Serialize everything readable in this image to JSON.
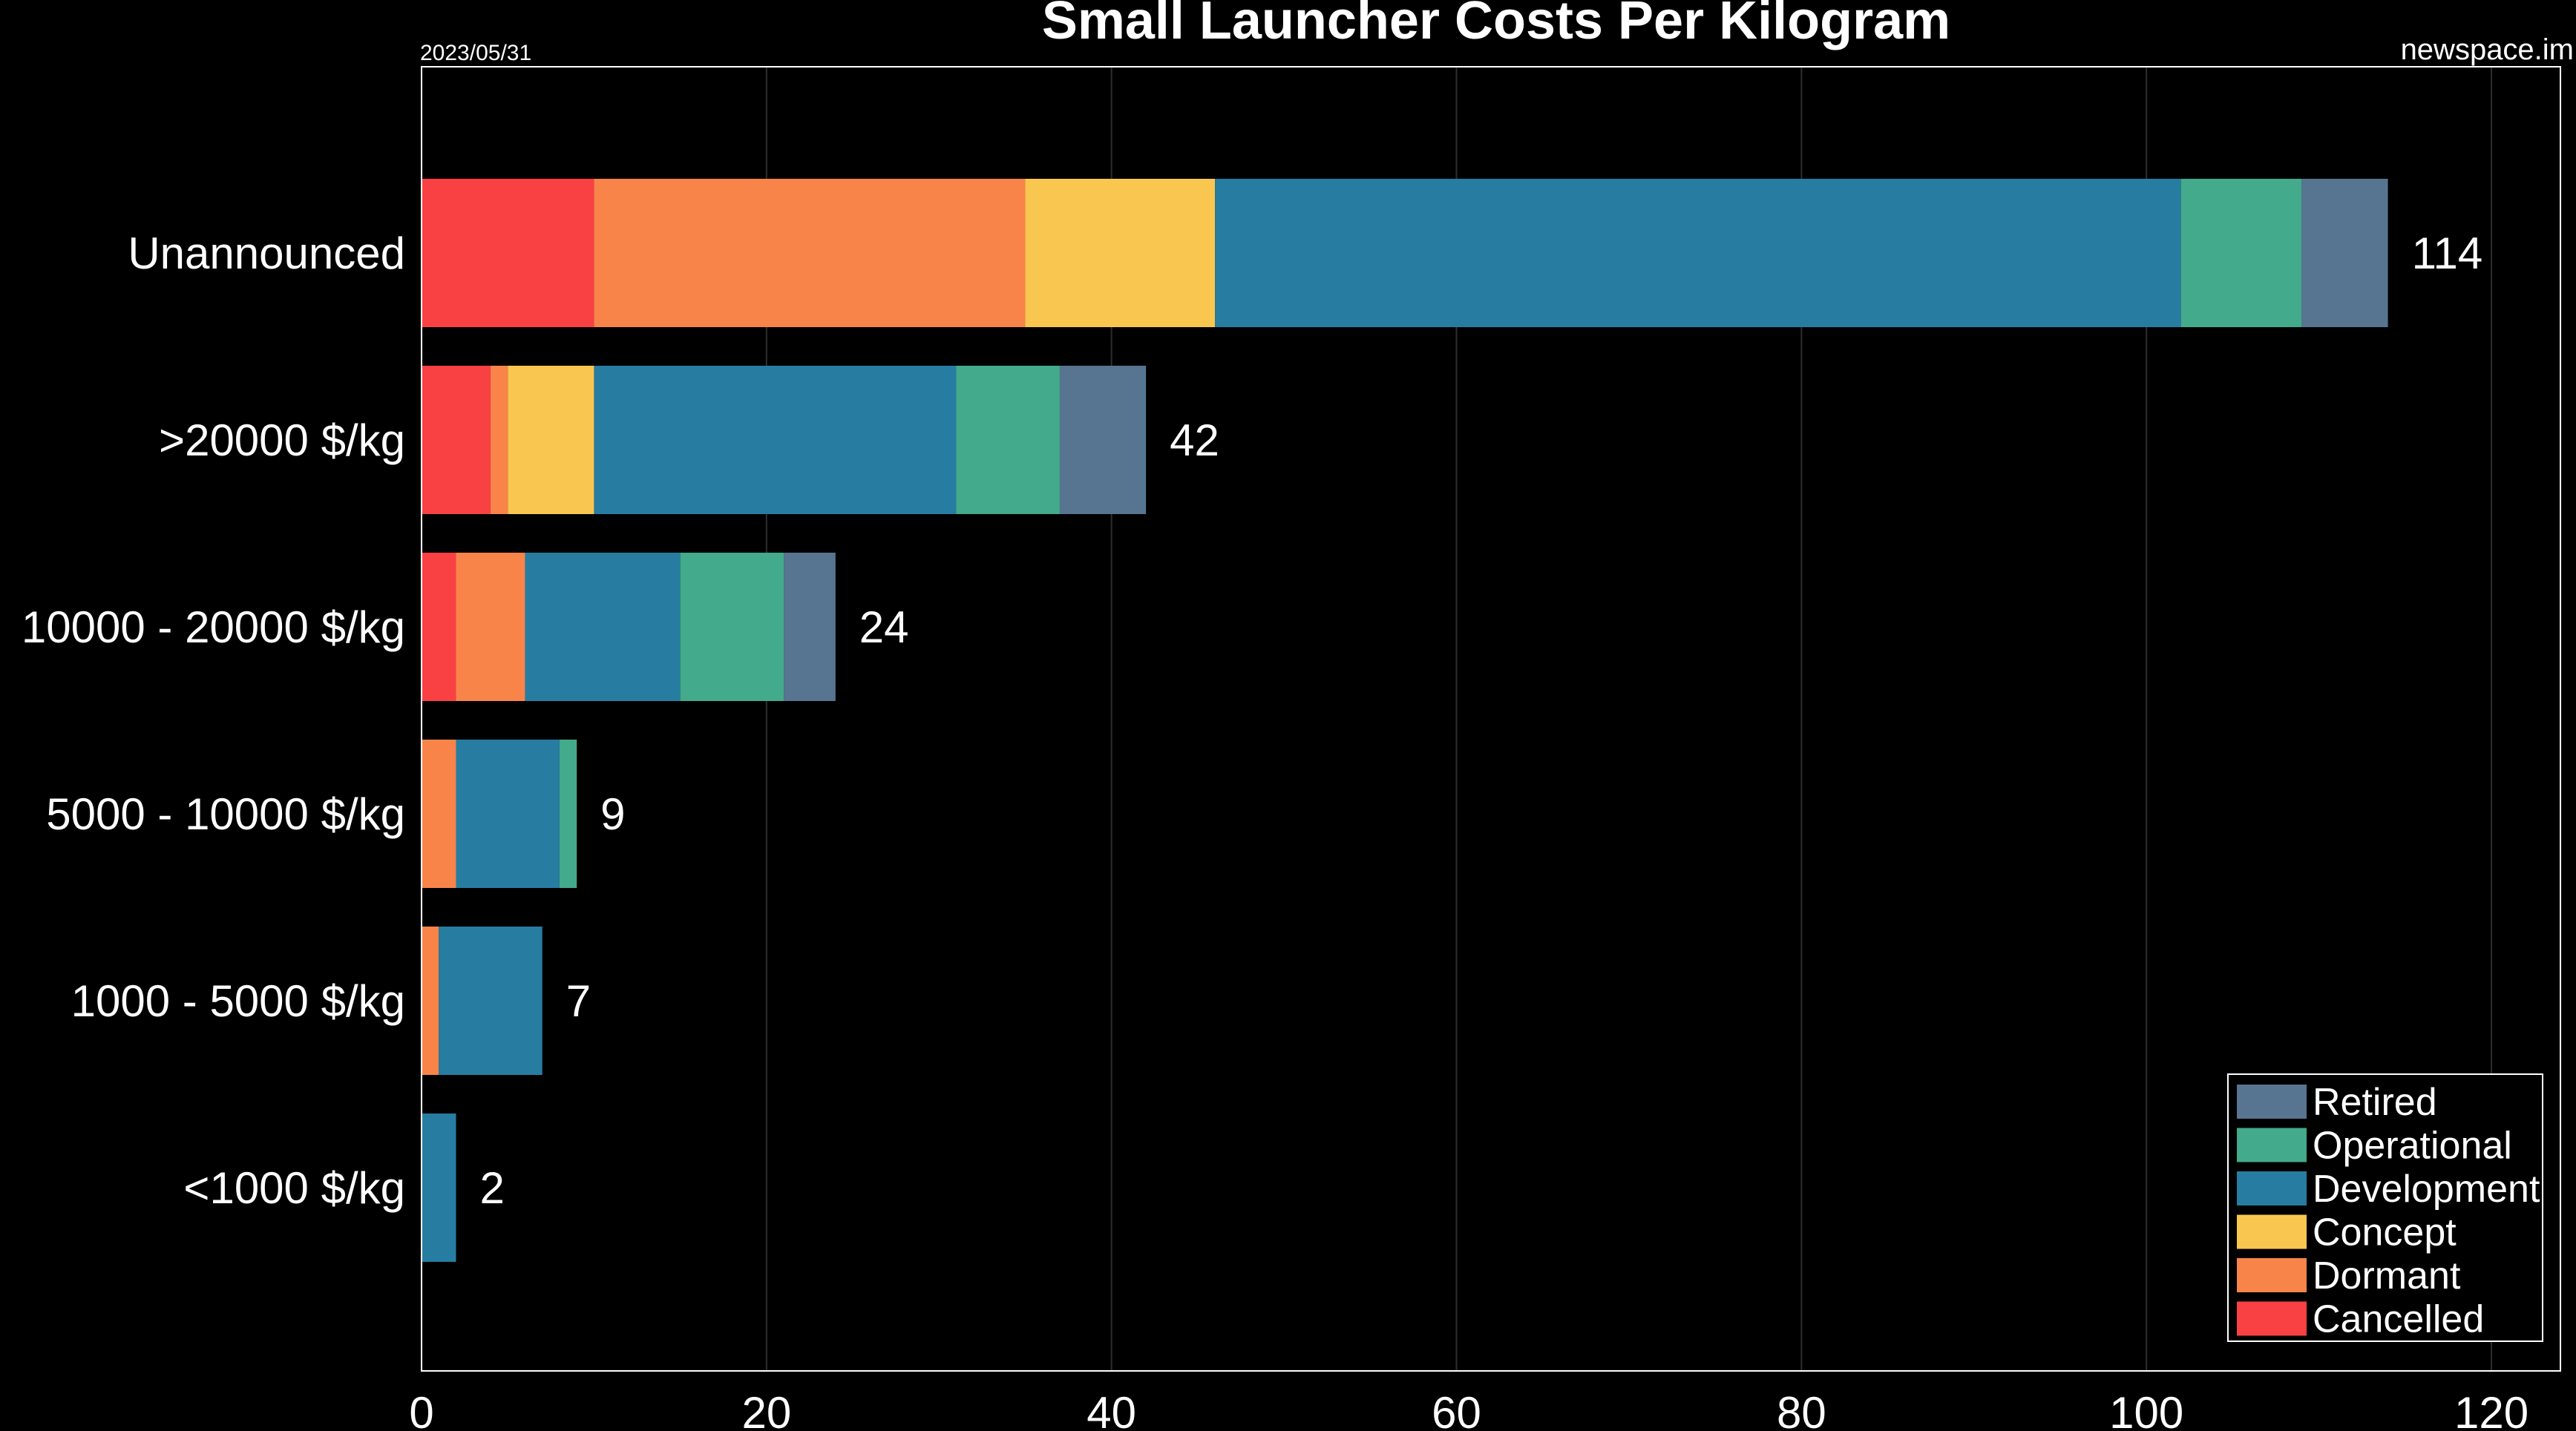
{
  "header": {
    "title": "Small Launcher Costs Per Kilogram",
    "date": "2023/05/31",
    "source": "newspace.im"
  },
  "colors": {
    "Cancelled": "#f94144",
    "Dormant": "#f9844a",
    "Concept": "#f9c74f",
    "Development": "#277da1",
    "Operational": "#43aa8b",
    "Retired": "#577590",
    "background": "#000000",
    "grid": "#2e2e2e",
    "frame": "#ffffff"
  },
  "chart_data": {
    "type": "bar",
    "orientation": "horizontal",
    "stacked": true,
    "title": "Small Launcher Costs Per Kilogram",
    "categories": [
      "Unannounced",
      ">20000 $/kg",
      "10000 - 20000 $/kg",
      "5000 - 10000 $/kg",
      "1000 - 5000 $/kg",
      "<1000 $/kg"
    ],
    "series": [
      {
        "name": "Cancelled",
        "values": [
          10,
          4,
          2,
          0,
          0,
          0
        ]
      },
      {
        "name": "Dormant",
        "values": [
          25,
          1,
          4,
          2,
          1,
          0
        ]
      },
      {
        "name": "Concept",
        "values": [
          11,
          5,
          0,
          0,
          0,
          0
        ]
      },
      {
        "name": "Development",
        "values": [
          56,
          21,
          9,
          6,
          6,
          2
        ]
      },
      {
        "name": "Operational",
        "values": [
          7,
          6,
          6,
          1,
          0,
          0
        ]
      },
      {
        "name": "Retired",
        "values": [
          5,
          5,
          3,
          0,
          0,
          0
        ]
      }
    ],
    "totals": [
      114,
      42,
      24,
      9,
      7,
      2
    ],
    "xlim": [
      0,
      124
    ],
    "xticks": [
      0,
      20,
      40,
      60,
      80,
      100,
      120
    ],
    "grid": "vertical",
    "legend_order": [
      "Retired",
      "Operational",
      "Development",
      "Concept",
      "Dormant",
      "Cancelled"
    ],
    "legend_position": "bottom-right"
  }
}
